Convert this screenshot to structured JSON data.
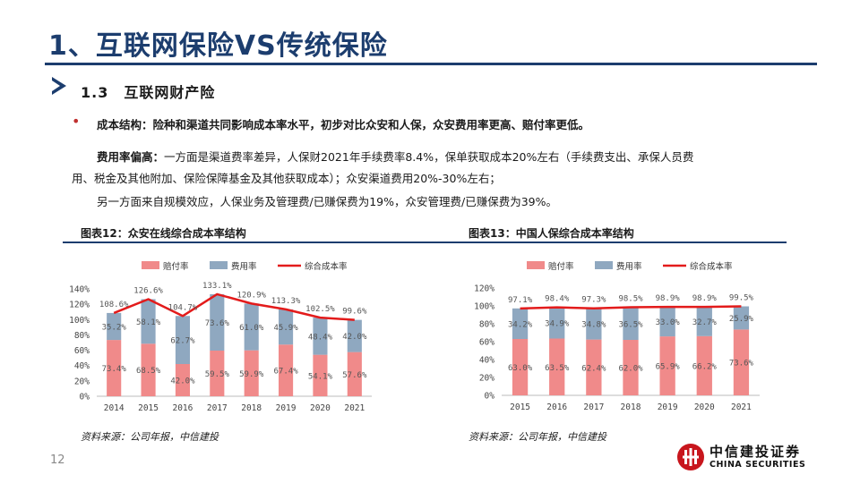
{
  "header": {
    "title": "1、互联网保险VS传统保险",
    "section": "1.3　互联网财产险"
  },
  "body": {
    "p1_bold": "成本结构：险种和渠道共同影响成本率水平，初步对比众安和人保，众安费用率更高、赔付率更低。",
    "p2_bold": "费用率偏高：",
    "p2_text": "一方面是渠道费率差异，人保财2021年手续费率8.4%，保单获取成本20%左右（手续费支出、承保人员费",
    "p3_text": "用、税金及其他附加、保险保障基金及其他获取成本）；众安渠道费用20%-30%左右；",
    "p4_text": "另一方面来自规模效应，人保业务及管理费/已赚保费为19%，众安管理费/已赚保费为39%。"
  },
  "charts": {
    "c1_title": "图表12：众安在线综合成本率结构",
    "c2_title": "图表13：中国人保综合成本率结构",
    "source1": "资料来源：公司年报，中信建投",
    "source2": "资料来源：公司年报，中信建投"
  },
  "footer": {
    "page_number": "12",
    "logo_cn": "中信建投证券",
    "logo_en": "CHINA SECURITIES"
  },
  "colors": {
    "navy": "#1c3d6e",
    "claims": "#f08a8a",
    "expense": "#8fa8c0",
    "combined": "#e31b1b"
  },
  "chart_data": [
    {
      "type": "bar",
      "stacked": true,
      "title": "众安在线综合成本率结构",
      "categories": [
        "2014",
        "2015",
        "2016",
        "2017",
        "2018",
        "2019",
        "2020",
        "2021"
      ],
      "series": [
        {
          "name": "赔付率",
          "kind": "bar",
          "values": [
            73.4,
            68.5,
            42.0,
            59.5,
            59.9,
            67.4,
            54.1,
            57.6
          ],
          "labels": [
            "73.4%",
            "68.5%",
            "42.0%",
            "59.5%",
            "59.9%",
            "67.4%",
            "54.1%",
            "57.6%"
          ]
        },
        {
          "name": "费用率",
          "kind": "bar",
          "values": [
            35.2,
            58.1,
            62.7,
            73.6,
            61.0,
            45.9,
            48.4,
            42.0
          ],
          "labels": [
            "35.2%",
            "58.1%",
            "62.7%",
            "73.6%",
            "61.0%",
            "45.9%",
            "48.4%",
            "42.0%"
          ]
        },
        {
          "name": "综合成本率",
          "kind": "line",
          "values": [
            108.6,
            126.6,
            104.7,
            133.1,
            120.9,
            113.3,
            102.5,
            99.6
          ],
          "labels": [
            "108.6%",
            "126.6%",
            "104.7%",
            "133.1%",
            "120.9%",
            "113.3%",
            "102.5%",
            "99.6%"
          ]
        }
      ],
      "ylim": [
        0,
        140
      ],
      "yticks": [
        0,
        20,
        40,
        60,
        80,
        100,
        120,
        140
      ],
      "ytick_labels": [
        "0%",
        "20%",
        "40%",
        "60%",
        "80%",
        "100%",
        "120%",
        "140%"
      ],
      "legend": "top"
    },
    {
      "type": "bar",
      "stacked": true,
      "title": "中国人保综合成本率结构",
      "categories": [
        "2015",
        "2016",
        "2017",
        "2018",
        "2019",
        "2020",
        "2021"
      ],
      "series": [
        {
          "name": "赔付率",
          "kind": "bar",
          "values": [
            63.0,
            63.5,
            62.4,
            62.0,
            65.9,
            66.2,
            73.6
          ],
          "labels": [
            "63.0%",
            "63.5%",
            "62.4%",
            "62.0%",
            "65.9%",
            "66.2%",
            "73.6%"
          ]
        },
        {
          "name": "费用率",
          "kind": "bar",
          "values": [
            34.2,
            34.9,
            34.8,
            36.5,
            33.0,
            32.7,
            25.9
          ],
          "labels": [
            "34.2%",
            "34.9%",
            "34.8%",
            "36.5%",
            "33.0%",
            "32.7%",
            "25.9%"
          ]
        },
        {
          "name": "综合成本率",
          "kind": "line",
          "values": [
            97.1,
            98.4,
            97.3,
            98.5,
            98.9,
            98.9,
            99.5
          ],
          "labels": [
            "97.1%",
            "98.4%",
            "97.3%",
            "98.5%",
            "98.9%",
            "98.9%",
            "99.5%"
          ]
        }
      ],
      "ylim": [
        0,
        120
      ],
      "yticks": [
        0,
        20,
        40,
        60,
        80,
        100,
        120
      ],
      "ytick_labels": [
        "0%",
        "20%",
        "40%",
        "60%",
        "80%",
        "100%",
        "120%"
      ],
      "legend": "top"
    }
  ]
}
